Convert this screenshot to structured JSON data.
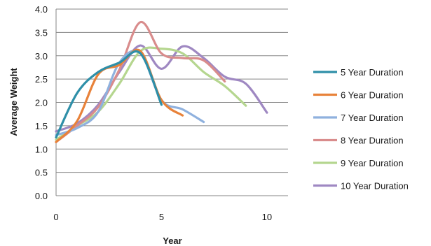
{
  "chart_data": {
    "type": "line",
    "xlabel": "Year",
    "ylabel": "Average Weight",
    "xlim": [
      0,
      11
    ],
    "ylim": [
      0,
      4
    ],
    "x_ticks": [
      0,
      5,
      10
    ],
    "y_ticks": [
      0,
      0.5,
      1,
      1.5,
      2,
      2.5,
      3,
      3.5,
      4
    ],
    "y_tick_labels": [
      "0.0",
      "0.5",
      "1.0",
      "1.5",
      "2.0",
      "2.5",
      "3.0",
      "3.5",
      "4.0"
    ],
    "grid": true,
    "legend_position": "right",
    "series": [
      {
        "name": "5 Year Duration",
        "color": "#2e8fa8",
        "x": [
          0,
          1,
          2,
          3,
          4,
          5
        ],
        "y": [
          1.25,
          2.2,
          2.65,
          2.85,
          3.05,
          1.95
        ]
      },
      {
        "name": "6 Year Duration",
        "color": "#e8823a",
        "x": [
          0,
          1,
          2,
          3,
          4,
          5,
          6
        ],
        "y": [
          1.15,
          1.6,
          2.6,
          2.8,
          3.1,
          2.05,
          1.72
        ]
      },
      {
        "name": "7 Year Duration",
        "color": "#8fb1de",
        "x": [
          0,
          1,
          2,
          3,
          4,
          5,
          6,
          7
        ],
        "y": [
          1.3,
          1.45,
          1.8,
          2.85,
          3.05,
          2.05,
          1.85,
          1.58
        ]
      },
      {
        "name": "8 Year Duration",
        "color": "#d98c8c",
        "x": [
          0,
          1,
          2,
          3,
          4,
          5,
          6,
          7,
          8
        ],
        "y": [
          1.15,
          1.5,
          1.9,
          2.7,
          3.72,
          3.05,
          2.95,
          2.9,
          2.45
        ]
      },
      {
        "name": "9 Year Duration",
        "color": "#b5d68f",
        "x": [
          0,
          1,
          2,
          3,
          4,
          5,
          6,
          7,
          8,
          9
        ],
        "y": [
          1.2,
          1.5,
          1.8,
          2.4,
          3.1,
          3.15,
          3.05,
          2.65,
          2.35,
          1.93
        ]
      },
      {
        "name": "10 Year Duration",
        "color": "#9f88c2",
        "x": [
          0,
          1,
          2,
          3,
          4,
          5,
          6,
          7,
          8,
          9,
          10
        ],
        "y": [
          1.38,
          1.55,
          1.95,
          2.65,
          3.22,
          2.72,
          3.2,
          2.95,
          2.55,
          2.4,
          1.78
        ]
      }
    ]
  }
}
